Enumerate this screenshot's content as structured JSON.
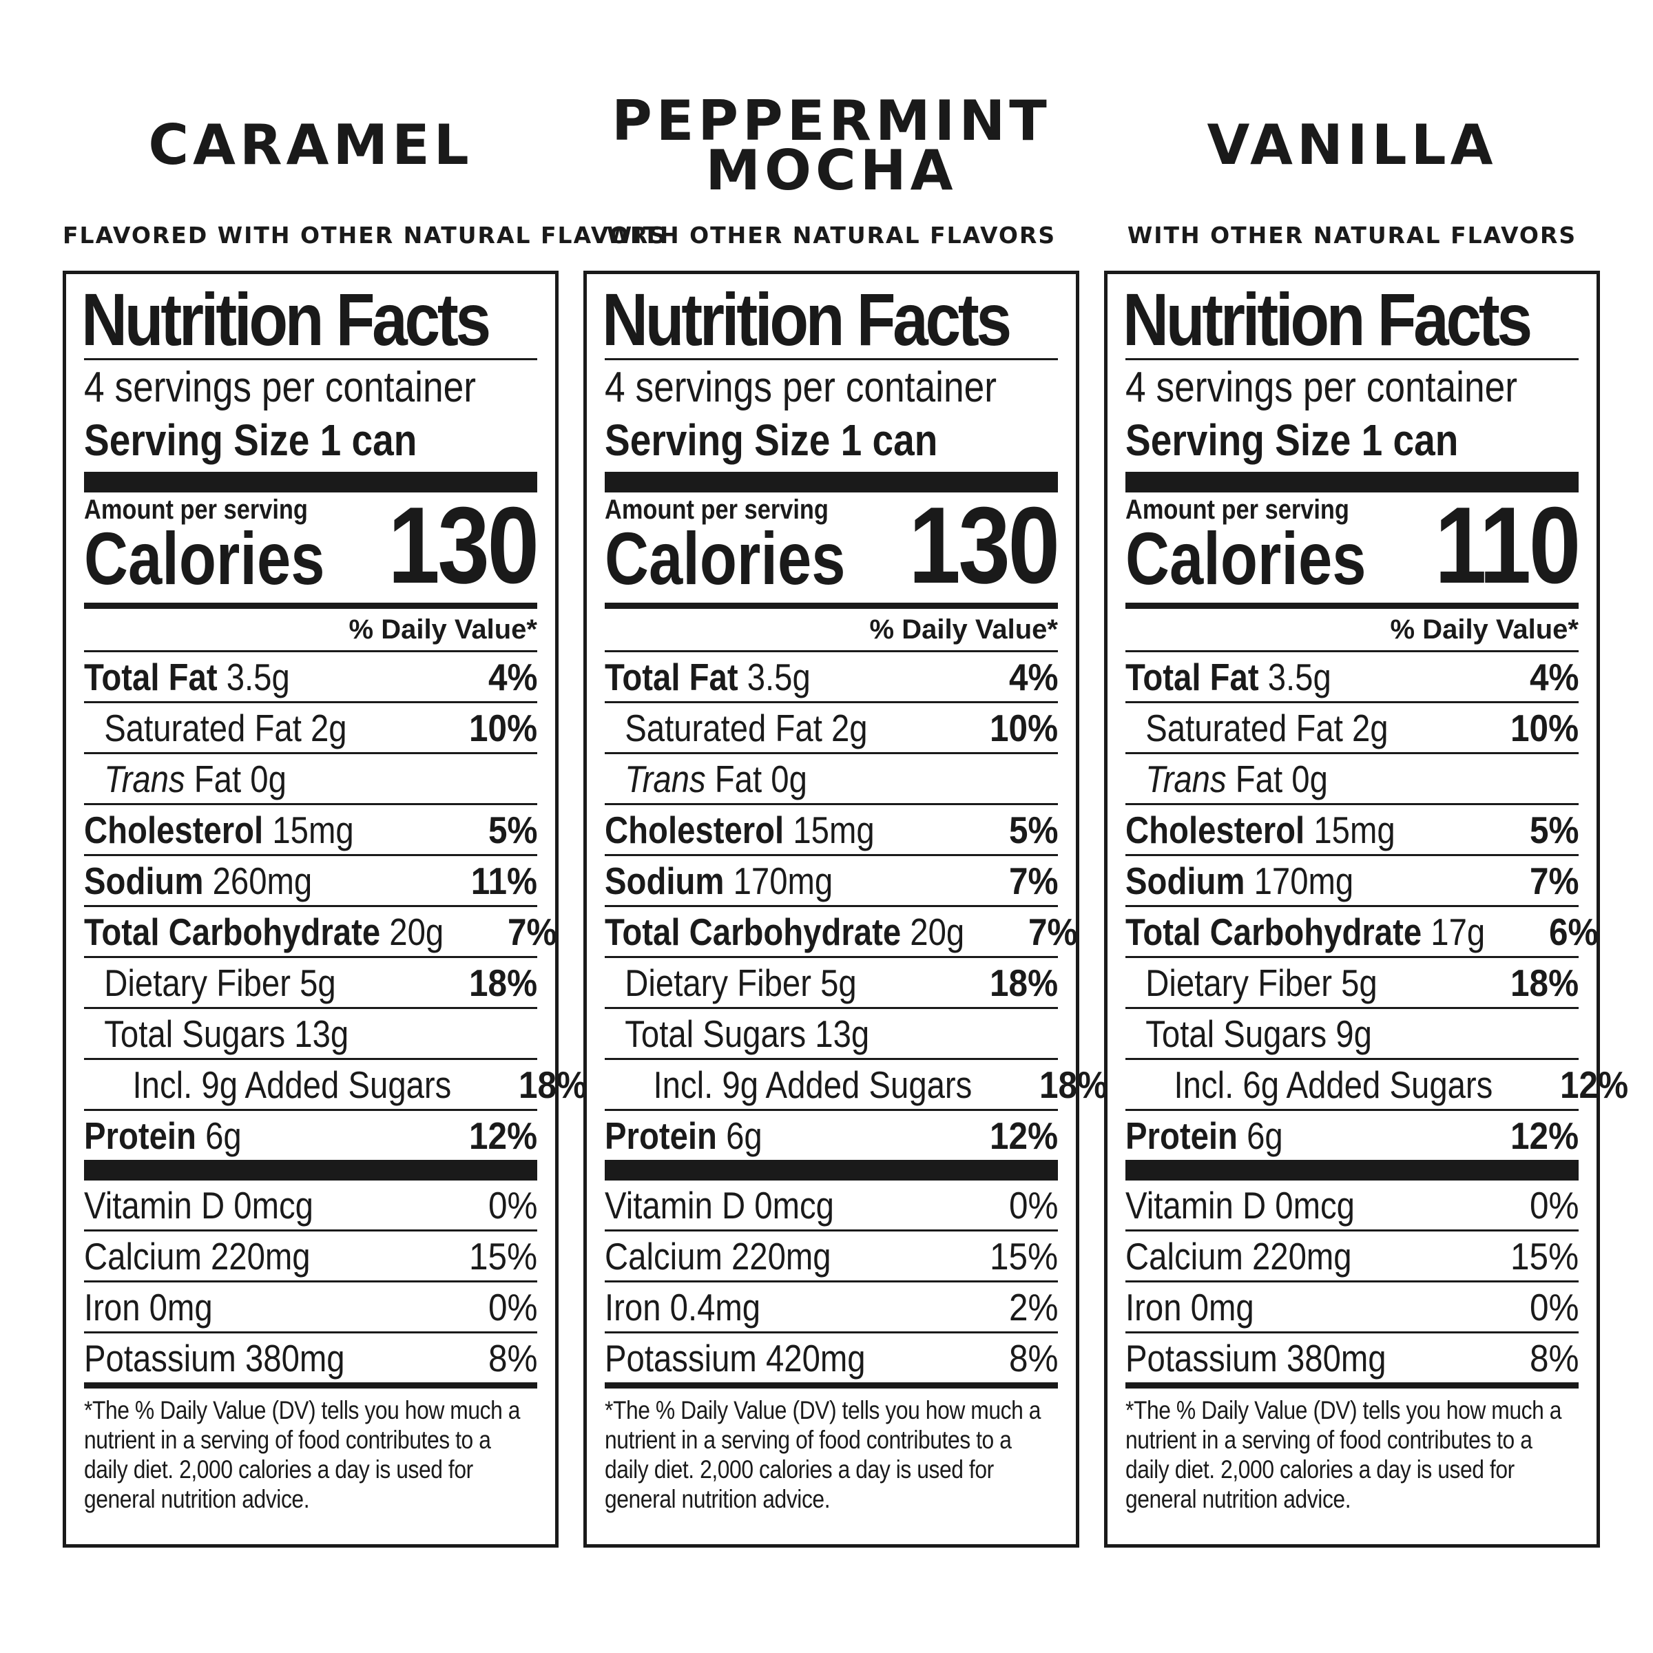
{
  "labels": [
    {
      "flavor": "CARAMEL",
      "subtitle": "FLAVORED WITH OTHER NATURAL FLAVORS",
      "nutrition_title": "Nutrition Facts",
      "servings_per_container": "4 servings per container",
      "serving_size_label": "Serving Size",
      "serving_size_value": "1 can",
      "amount_per_serving": "Amount per serving",
      "calories_label": "Calories",
      "calories": "130",
      "daily_value_header": "% Daily Value*",
      "total_fat_label": "Total Fat",
      "total_fat_amount": "3.5g",
      "total_fat_dv": "4%",
      "sat_fat_label": "Saturated Fat 2g",
      "sat_fat_dv": "10%",
      "trans_fat_label": "Trans",
      "trans_fat_rest": "Fat 0g",
      "cholesterol_label": "Cholesterol",
      "cholesterol_amount": "15mg",
      "cholesterol_dv": "5%",
      "sodium_label": "Sodium",
      "sodium_amount": "260mg",
      "sodium_dv": "11%",
      "carb_label": "Total Carbohydrate",
      "carb_amount": "20g",
      "carb_dv": "7%",
      "fiber_label": "Dietary Fiber 5g",
      "fiber_dv": "18%",
      "sugars_label": "Total Sugars 13g",
      "added_sugars_label": "Incl. 9g Added Sugars",
      "added_sugars_dv": "18%",
      "protein_label": "Protein",
      "protein_amount": "6g",
      "protein_dv": "12%",
      "vitamin_d": "Vitamin D 0mcg",
      "vitamin_d_dv": "0%",
      "calcium": "Calcium 220mg",
      "calcium_dv": "15%",
      "iron": "Iron 0mg",
      "iron_dv": "0%",
      "potassium": "Potassium 380mg",
      "potassium_dv": "8%",
      "footnote": "*The % Daily Value (DV) tells you how much a nutrient in a serving of food contributes to a daily diet. 2,000 calories a day is used for general nutrition advice."
    },
    {
      "flavor": "PEPPERMINT\nMOCHA",
      "subtitle": "WITH OTHER NATURAL FLAVORS",
      "nutrition_title": "Nutrition Facts",
      "servings_per_container": "4 servings per container",
      "serving_size_label": "Serving Size",
      "serving_size_value": "1 can",
      "amount_per_serving": "Amount per serving",
      "calories_label": "Calories",
      "calories": "130",
      "daily_value_header": "% Daily Value*",
      "total_fat_label": "Total Fat",
      "total_fat_amount": "3.5g",
      "total_fat_dv": "4%",
      "sat_fat_label": "Saturated Fat 2g",
      "sat_fat_dv": "10%",
      "trans_fat_label": "Trans",
      "trans_fat_rest": "Fat 0g",
      "cholesterol_label": "Cholesterol",
      "cholesterol_amount": "15mg",
      "cholesterol_dv": "5%",
      "sodium_label": "Sodium",
      "sodium_amount": "170mg",
      "sodium_dv": "7%",
      "carb_label": "Total Carbohydrate",
      "carb_amount": "20g",
      "carb_dv": "7%",
      "fiber_label": "Dietary Fiber 5g",
      "fiber_dv": "18%",
      "sugars_label": "Total Sugars 13g",
      "added_sugars_label": "Incl. 9g Added Sugars",
      "added_sugars_dv": "18%",
      "protein_label": "Protein",
      "protein_amount": "6g",
      "protein_dv": "12%",
      "vitamin_d": "Vitamin D 0mcg",
      "vitamin_d_dv": "0%",
      "calcium": "Calcium 220mg",
      "calcium_dv": "15%",
      "iron": "Iron 0.4mg",
      "iron_dv": "2%",
      "potassium": "Potassium 420mg",
      "potassium_dv": "8%",
      "footnote": "*The % Daily Value (DV) tells you how much a nutrient in a serving of food contributes to a daily diet. 2,000 calories a day is used for general nutrition advice."
    },
    {
      "flavor": "VANILLA",
      "subtitle": "WITH OTHER NATURAL FLAVORS",
      "nutrition_title": "Nutrition Facts",
      "servings_per_container": "4 servings per container",
      "serving_size_label": "Serving Size",
      "serving_size_value": "1 can",
      "amount_per_serving": "Amount per serving",
      "calories_label": "Calories",
      "calories": "110",
      "daily_value_header": "% Daily Value*",
      "total_fat_label": "Total Fat",
      "total_fat_amount": "3.5g",
      "total_fat_dv": "4%",
      "sat_fat_label": "Saturated Fat 2g",
      "sat_fat_dv": "10%",
      "trans_fat_label": "Trans",
      "trans_fat_rest": "Fat 0g",
      "cholesterol_label": "Cholesterol",
      "cholesterol_amount": "15mg",
      "cholesterol_dv": "5%",
      "sodium_label": "Sodium",
      "sodium_amount": "170mg",
      "sodium_dv": "7%",
      "carb_label": "Total Carbohydrate",
      "carb_amount": "17g",
      "carb_dv": "6%",
      "fiber_label": "Dietary Fiber 5g",
      "fiber_dv": "18%",
      "sugars_label": "Total Sugars 9g",
      "added_sugars_label": "Incl. 6g Added Sugars",
      "added_sugars_dv": "12%",
      "protein_label": "Protein",
      "protein_amount": "6g",
      "protein_dv": "12%",
      "vitamin_d": "Vitamin D 0mcg",
      "vitamin_d_dv": "0%",
      "calcium": "Calcium 220mg",
      "calcium_dv": "15%",
      "iron": "Iron 0mg",
      "iron_dv": "0%",
      "potassium": "Potassium 380mg",
      "potassium_dv": "8%",
      "footnote": "*The % Daily Value (DV) tells you how much a nutrient in a serving of food contributes to a daily diet. 2,000 calories a day is used for general nutrition advice."
    }
  ]
}
